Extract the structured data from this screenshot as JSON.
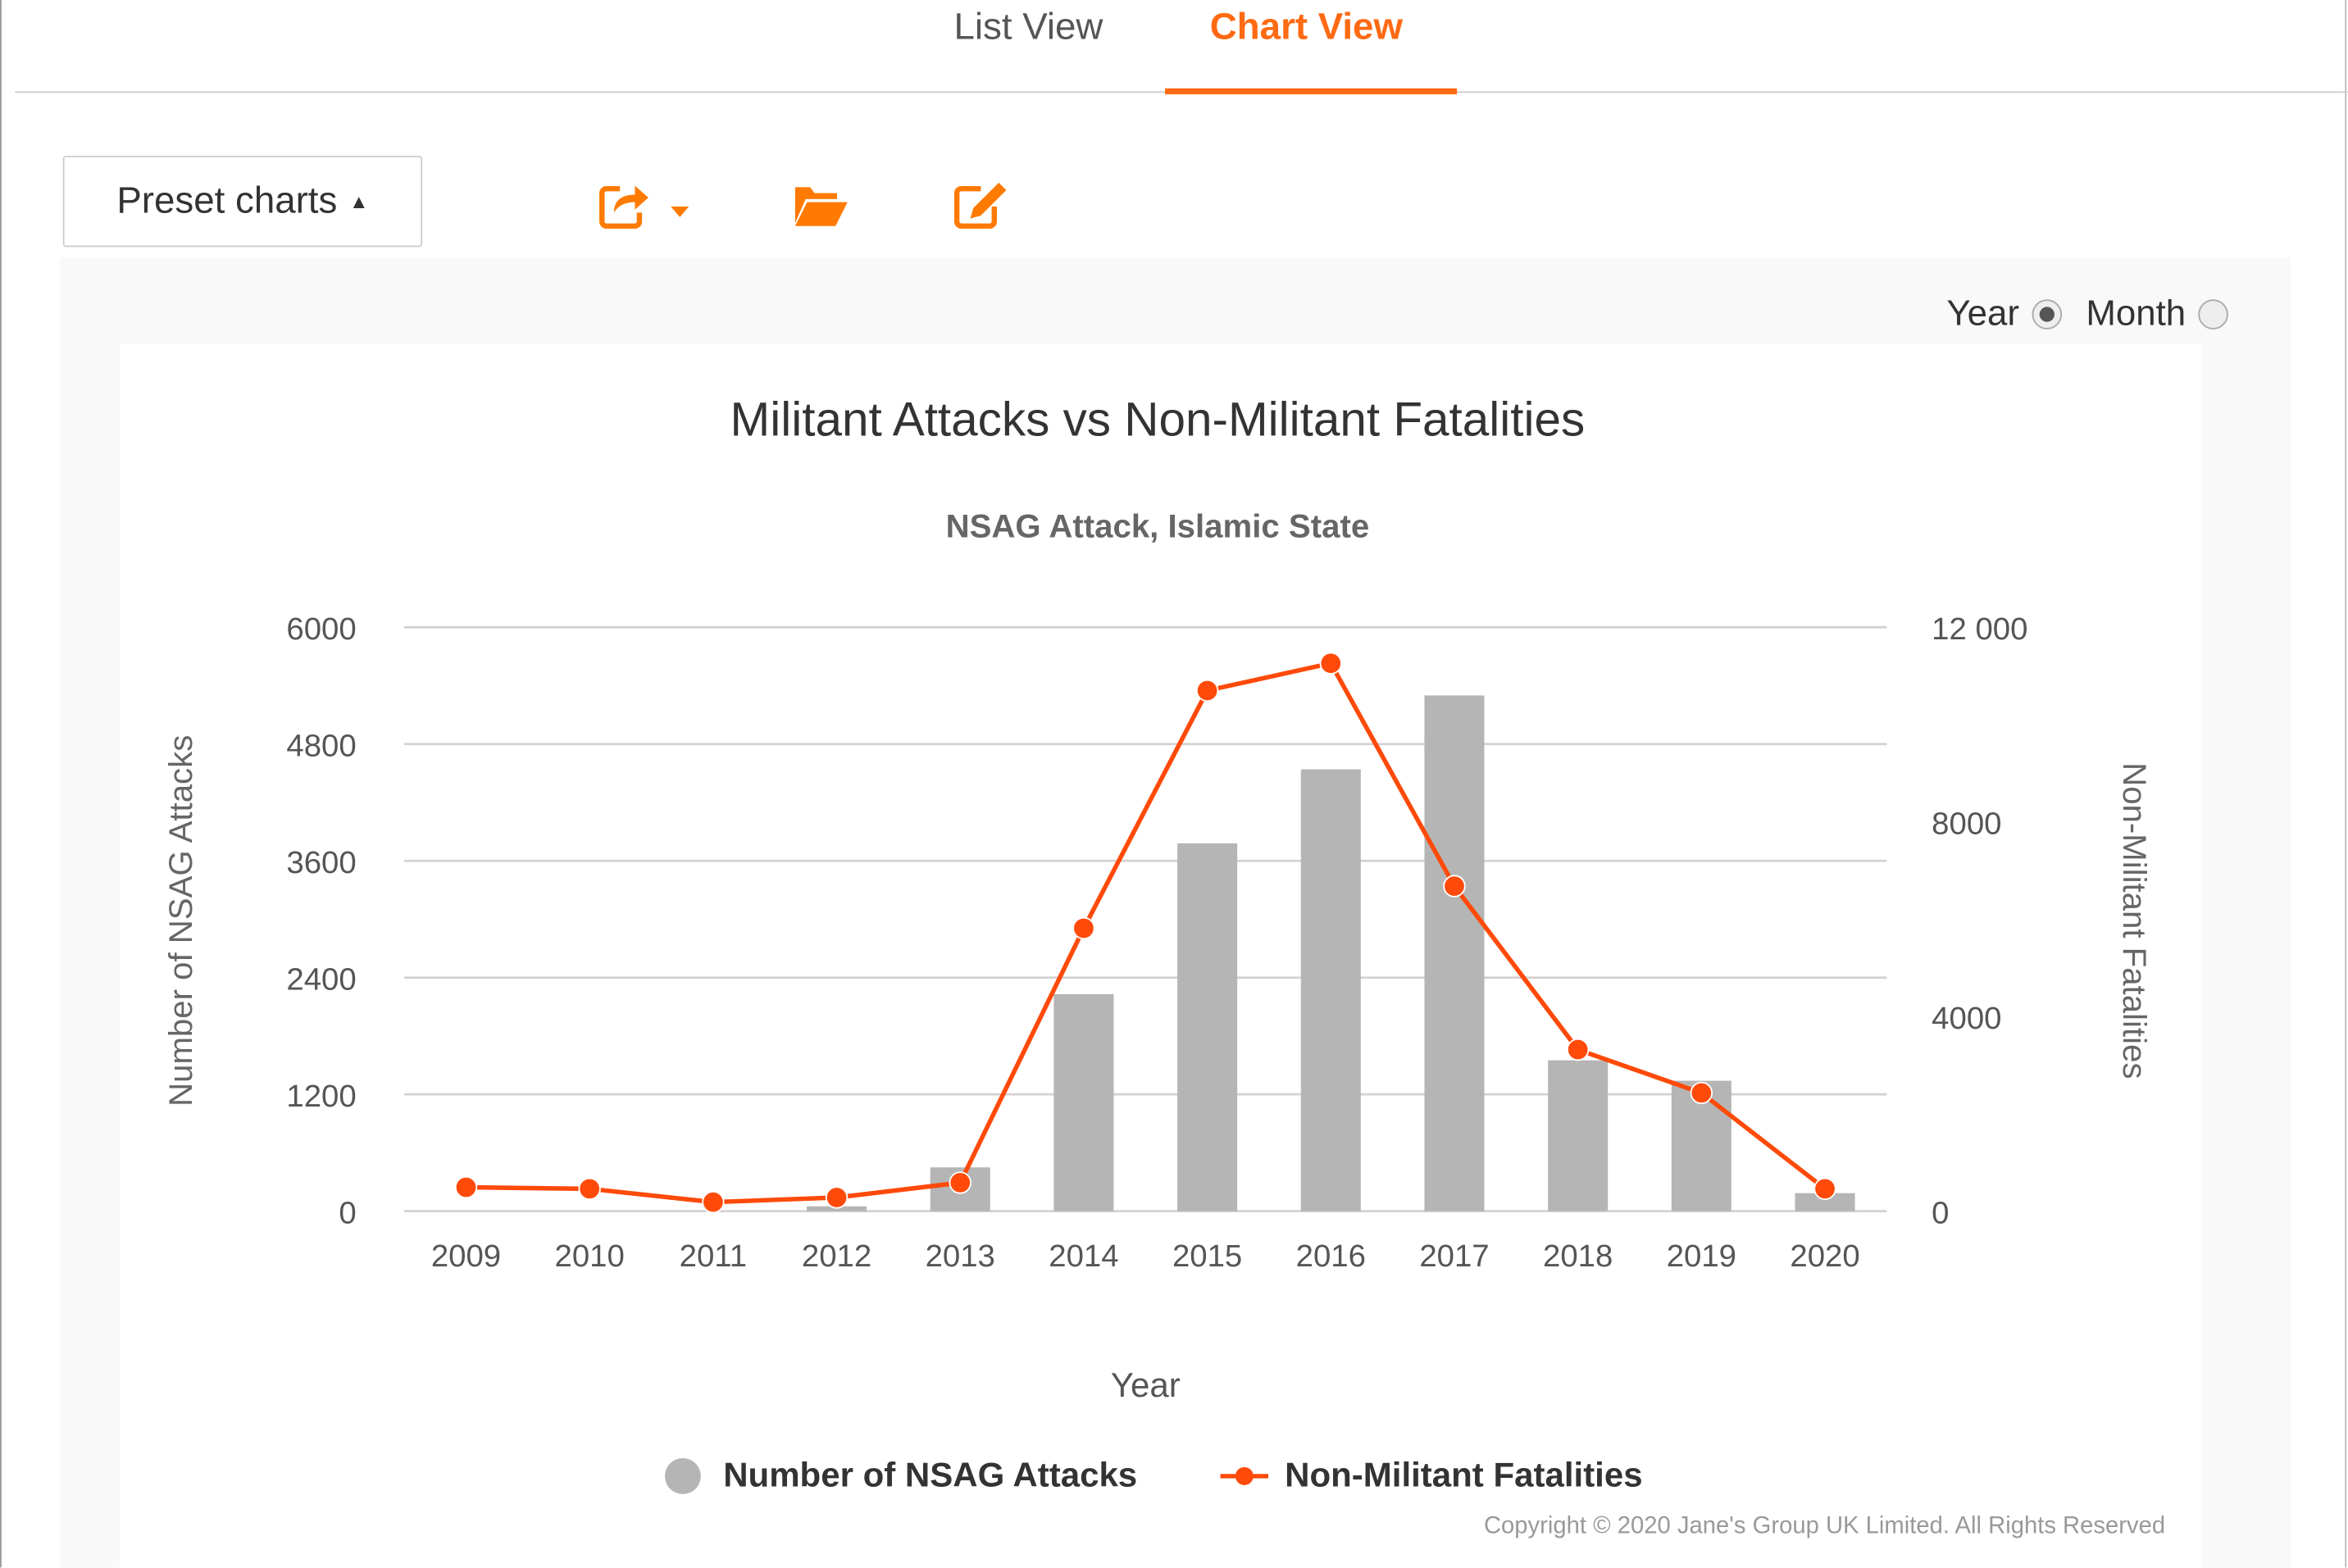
{
  "tabs": [
    {
      "label": "List View",
      "active": false
    },
    {
      "label": "Chart View",
      "active": true
    }
  ],
  "toolbar": {
    "preset_label": "Preset charts",
    "preset_caret": "▲",
    "icons": [
      "share-icon",
      "folder-open-icon",
      "edit-icon"
    ]
  },
  "period": {
    "year_label": "Year",
    "month_label": "Month",
    "selected": "Year"
  },
  "colors": {
    "accent": "#ff6a13",
    "bar": "#b5b5b5",
    "line": "#ff4a0a"
  },
  "copyright": "Copyright © 2020 Jane's Group UK Limited. All Rights Reserved",
  "chart_data": {
    "type": "bar+line",
    "title": "Militant Attacks vs Non-Militant Fatalities",
    "subtitle": "NSAG Attack, Islamic State",
    "xlabel": "Year",
    "ylabel": "Number of NSAG Attacks",
    "y2label": "Non-Militant Fatalities",
    "categories": [
      "2009",
      "2010",
      "2011",
      "2012",
      "2013",
      "2014",
      "2015",
      "2016",
      "2017",
      "2018",
      "2019",
      "2020"
    ],
    "ylim": [
      0,
      6000
    ],
    "yticks": [
      "0",
      "1200",
      "2400",
      "3600",
      "4800",
      "6000"
    ],
    "y2lim": [
      0,
      12000
    ],
    "y2ticks": [
      {
        "value": 0,
        "label": "0"
      },
      {
        "value": 4000,
        "label": "4000"
      },
      {
        "value": 8000,
        "label": "8000"
      },
      {
        "value": 12000,
        "label": "12 000"
      }
    ],
    "grid": true,
    "legend_position": "bottom",
    "series": [
      {
        "name": "Number of NSAG Attacks",
        "type": "bar",
        "axis": "left",
        "values": [
          0,
          0,
          0,
          50,
          450,
          2230,
          3780,
          4540,
          5300,
          1550,
          1340,
          185
        ]
      },
      {
        "name": "Non-Militant Fatalities",
        "type": "line",
        "axis": "right",
        "values": [
          490,
          460,
          185,
          280,
          585,
          5815,
          10700,
          11260,
          6680,
          3320,
          2430,
          460
        ]
      }
    ]
  }
}
